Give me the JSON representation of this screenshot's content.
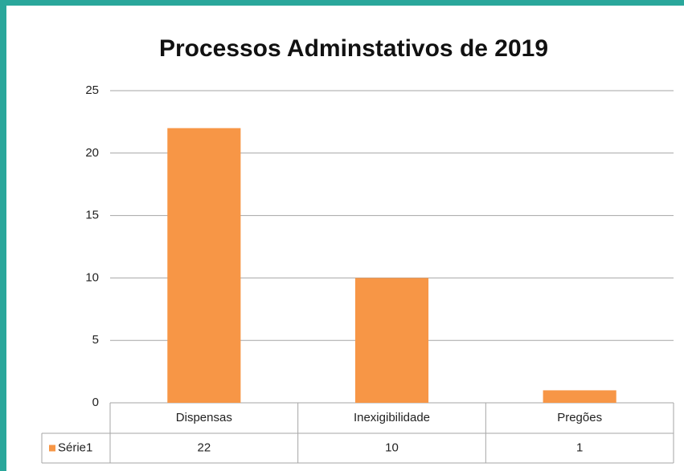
{
  "chart_data": {
    "type": "bar",
    "title": "Processos Adminstativos de 2019",
    "categories": [
      "Dispensas",
      "Inexigibilidade",
      "Pregões"
    ],
    "series": [
      {
        "name": "Série1",
        "color": "#f79646",
        "values": [
          22,
          10,
          1
        ]
      }
    ],
    "ylim": [
      0,
      25
    ],
    "yticks": [
      0,
      5,
      10,
      15,
      20,
      25
    ],
    "grid": true,
    "data_table": true
  }
}
